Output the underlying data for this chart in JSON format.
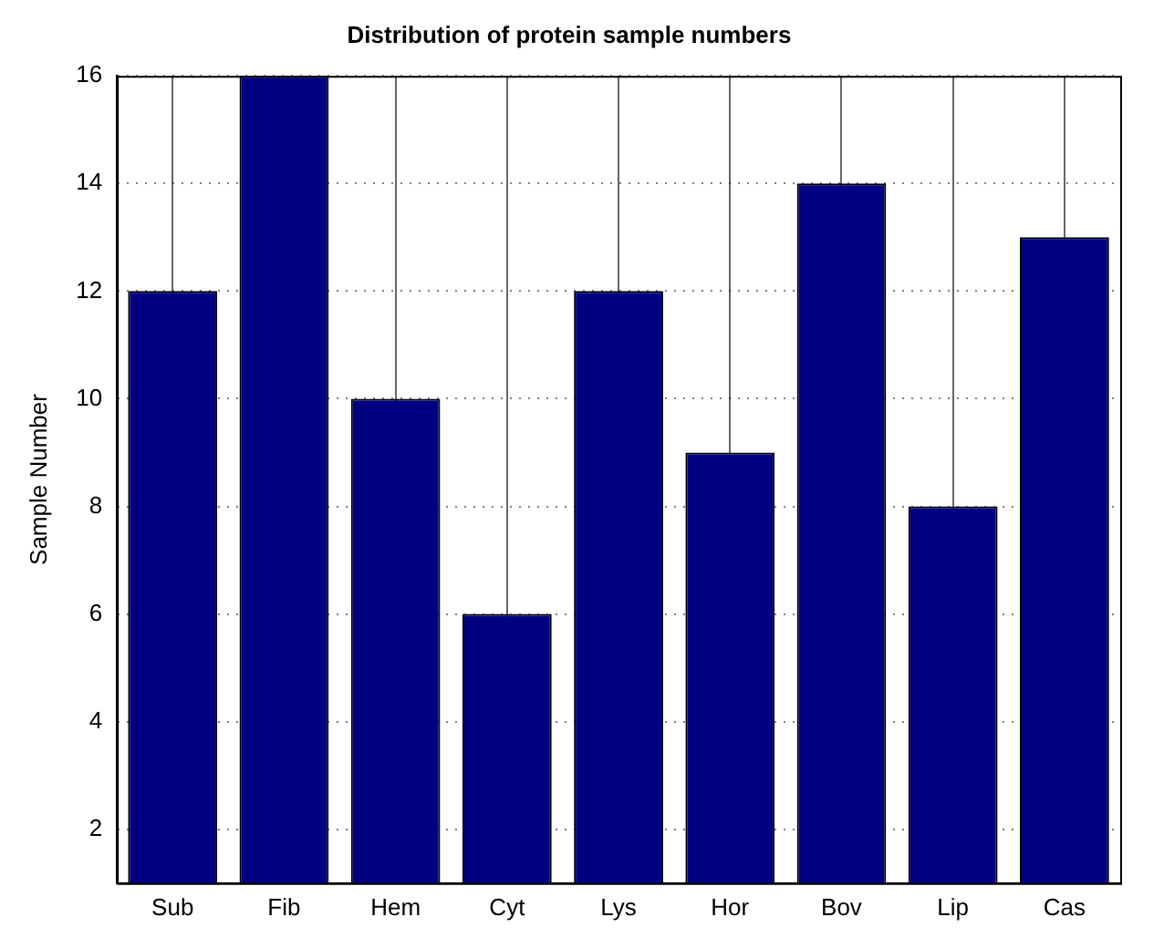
{
  "chart_data": {
    "type": "bar",
    "title": "Distribution of protein sample numbers",
    "ylabel": "Sample Number",
    "categories": [
      "Sub",
      "Fib",
      "Hem",
      "Cyt",
      "Lys",
      "Hor",
      "Bov",
      "Lip",
      "Cas"
    ],
    "values": [
      12,
      16,
      10,
      6,
      12,
      9,
      14,
      8,
      13
    ],
    "color": "#000080",
    "ylim": [
      1,
      16
    ],
    "yticks": [
      2,
      4,
      6,
      8,
      10,
      12,
      14,
      16
    ],
    "grid": true,
    "legend": false
  }
}
